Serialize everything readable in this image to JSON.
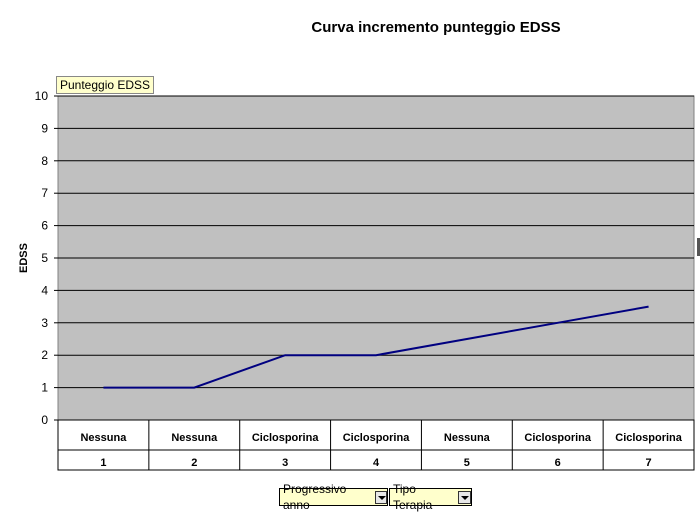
{
  "chart_data": {
    "type": "line",
    "title": "Curva incremento punteggio EDSS",
    "ylabel": "EDSS",
    "ylim": [
      0,
      10
    ],
    "yticks": [
      "0",
      "1",
      "2",
      "3",
      "4",
      "5",
      "6",
      "7",
      "8",
      "9",
      "10"
    ],
    "categories": [
      {
        "therapy": "Nessuna",
        "index": "1"
      },
      {
        "therapy": "Nessuna",
        "index": "2"
      },
      {
        "therapy": "Ciclosporina",
        "index": "3"
      },
      {
        "therapy": "Ciclosporina",
        "index": "4"
      },
      {
        "therapy": "Nessuna",
        "index": "5"
      },
      {
        "therapy": "Ciclosporina",
        "index": "6"
      },
      {
        "therapy": "Ciclosporina",
        "index": "7"
      }
    ],
    "series": [
      {
        "name": "Punteggio EDSS",
        "values": [
          1,
          1,
          2,
          2,
          2.5,
          3,
          3.5
        ],
        "color": "#000080"
      }
    ],
    "plot_background": "#c0c0c0",
    "grid": true
  },
  "controls": {
    "series_button": "Punteggio EDSS",
    "field_progressivo": "Progressivo anno",
    "field_tipo": "Tipo Terapia"
  }
}
